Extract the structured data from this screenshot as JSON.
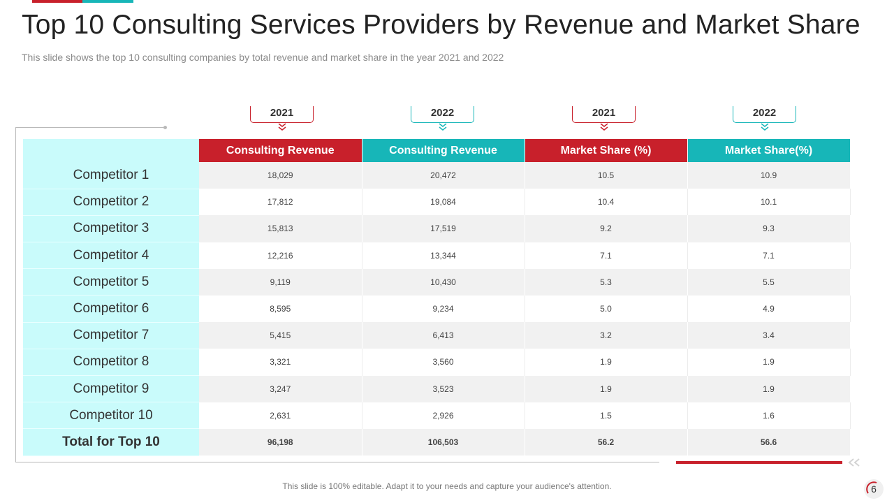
{
  "title": "Top 10 Consulting Services Providers by Revenue and Market Share",
  "subtitle": "This slide shows the top 10 consulting companies by total revenue and market share in the year 2021 and 2022",
  "year_tags": [
    "2021",
    "2022",
    "2021",
    "2022"
  ],
  "headers": [
    "Consulting Revenue",
    "Consulting Revenue",
    "Market Share (%)",
    "Market Share(%)"
  ],
  "rows": [
    {
      "label": "Competitor 1",
      "values": [
        "18,029",
        "20,472",
        "10.5",
        "10.9"
      ]
    },
    {
      "label": "Competitor 2",
      "values": [
        "17,812",
        "19,084",
        "10.4",
        "10.1"
      ]
    },
    {
      "label": "Competitor 3",
      "values": [
        "15,813",
        "17,519",
        "9.2",
        "9.3"
      ]
    },
    {
      "label": "Competitor 4",
      "values": [
        "12,216",
        "13,344",
        "7.1",
        "7.1"
      ]
    },
    {
      "label": "Competitor 5",
      "values": [
        "9,119",
        "10,430",
        "5.3",
        "5.5"
      ]
    },
    {
      "label": "Competitor 6",
      "values": [
        "8,595",
        "9,234",
        "5.0",
        "4.9"
      ]
    },
    {
      "label": "Competitor 7",
      "values": [
        "5,415",
        "6,413",
        "3.2",
        "3.4"
      ]
    },
    {
      "label": "Competitor 8",
      "values": [
        "3,321",
        "3,560",
        "1.9",
        "1.9"
      ]
    },
    {
      "label": "Competitor 9",
      "values": [
        "3,247",
        "3,523",
        "1.9",
        "1.9"
      ]
    },
    {
      "label": "Competitor 10",
      "values": [
        "2,631",
        "2,926",
        "1.5",
        "1.6"
      ]
    }
  ],
  "total": {
    "label": "Total for Top 10",
    "values": [
      "96,198",
      "106,503",
      "56.2",
      "56.6"
    ]
  },
  "footer": "This slide is 100% editable. Adapt it to your needs and capture your audience's attention.",
  "page_number": "6",
  "colors": {
    "red": "#c8202b",
    "teal": "#17b6b8",
    "label_bg": "#c9fbfb"
  }
}
